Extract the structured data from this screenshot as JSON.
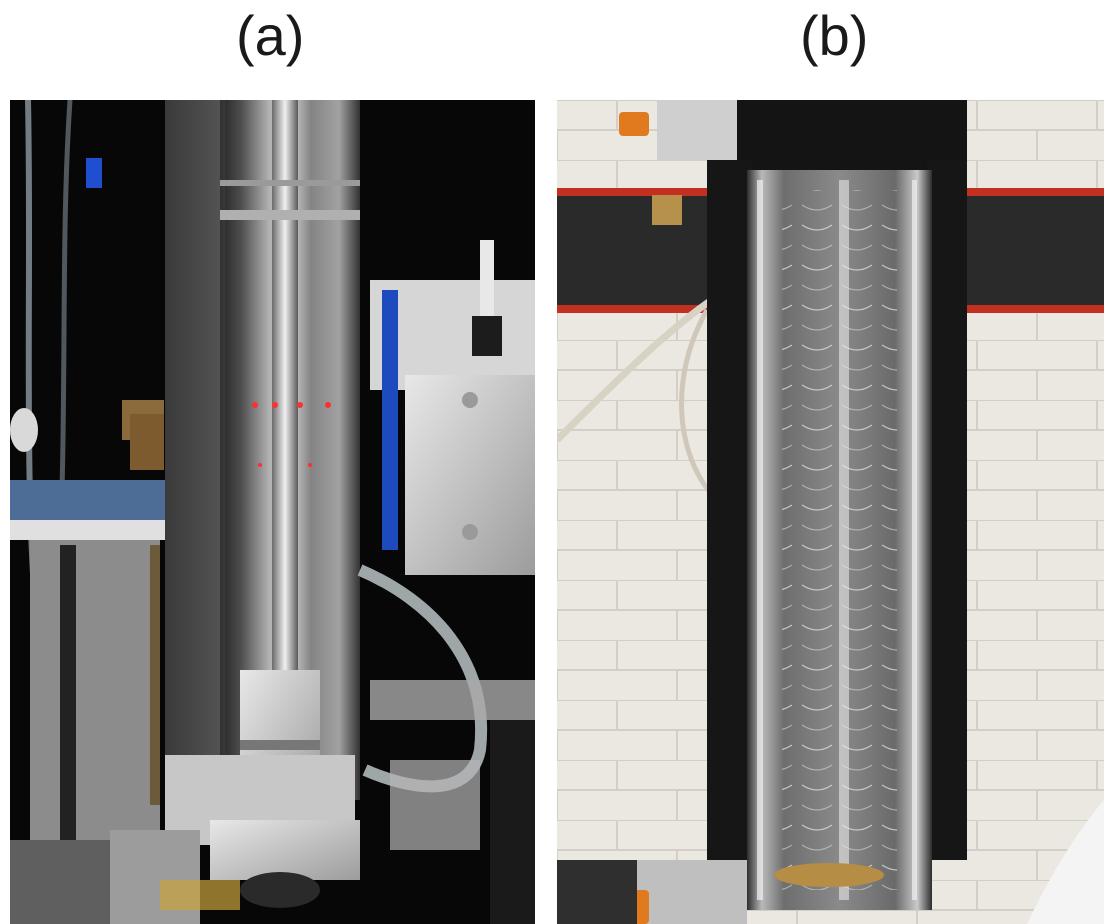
{
  "panels": [
    {
      "label": "(a)",
      "description_icon": "column-apparatus-dark-photo"
    },
    {
      "label": "(b)",
      "description_icon": "column-apparatus-brick-photo"
    }
  ],
  "colors": {
    "background": "#ffffff",
    "label": "#1a1a1a",
    "photo_a_bg": "#0a0a0a",
    "photo_b_wall": "#e9e6df",
    "accent_red_stripe": "#c2311f",
    "orange_knob": "#e07a1e"
  }
}
